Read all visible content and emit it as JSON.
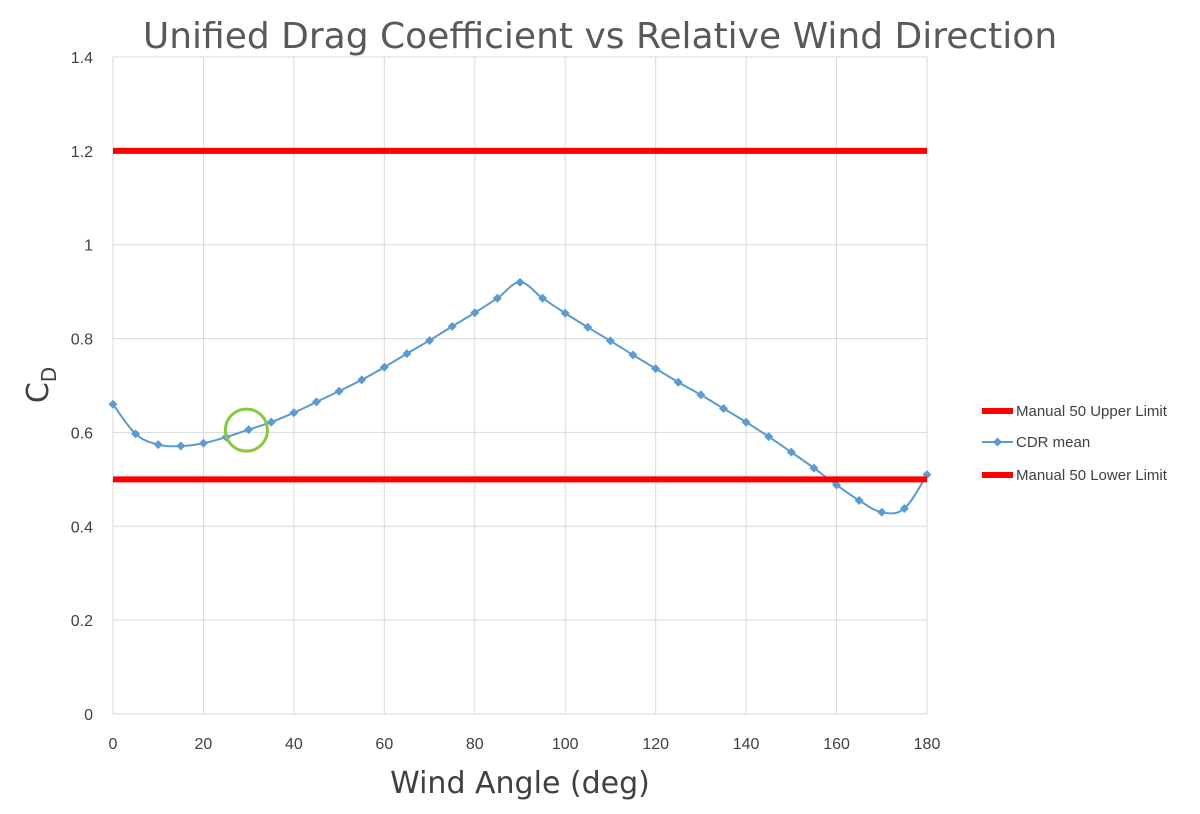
{
  "chart_data": {
    "type": "line",
    "title": "Unified Drag Coefficient vs Relative Wind Direction",
    "xlabel": "Wind Angle (deg)",
    "ylabel_main": "C",
    "ylabel_sub": "D",
    "xlim": [
      0,
      180
    ],
    "ylim": [
      0,
      1.4
    ],
    "x_ticks": [
      0,
      20,
      40,
      60,
      80,
      100,
      120,
      140,
      160,
      180
    ],
    "x_tick_labels": [
      "0",
      "20",
      "40",
      "60",
      "80",
      "100",
      "120",
      "140",
      "160",
      "180"
    ],
    "y_ticks": [
      0,
      0.2,
      0.4,
      0.6,
      0.8,
      1.0,
      1.2,
      1.4
    ],
    "y_tick_labels": [
      "0",
      "0.2",
      "0.4",
      "0.6",
      "0.8",
      "1",
      "1.2",
      "1.4"
    ],
    "grid": true,
    "legend_position": "right",
    "series": [
      {
        "name": "Manual 50 Upper Limit",
        "color": "#ff0000",
        "x": [
          0,
          180
        ],
        "y": [
          1.2,
          1.2
        ]
      },
      {
        "name": "CDR mean",
        "color": "#5b9bd5",
        "marker": "diamond",
        "x": [
          0,
          5,
          10,
          15,
          20,
          25,
          30,
          35,
          40,
          45,
          50,
          55,
          60,
          65,
          70,
          75,
          80,
          85,
          90,
          95,
          100,
          105,
          110,
          115,
          120,
          125,
          130,
          135,
          140,
          145,
          150,
          155,
          160,
          165,
          170,
          175,
          180
        ],
        "y": [
          0.66,
          0.597,
          0.574,
          0.571,
          0.577,
          0.59,
          0.606,
          0.622,
          0.642,
          0.665,
          0.688,
          0.712,
          0.739,
          0.768,
          0.796,
          0.826,
          0.855,
          0.886,
          0.92,
          0.886,
          0.854,
          0.824,
          0.795,
          0.765,
          0.736,
          0.707,
          0.68,
          0.651,
          0.622,
          0.591,
          0.558,
          0.524,
          0.488,
          0.455,
          0.43,
          0.438,
          0.51
        ]
      },
      {
        "name": "Manual 50 Lower Limit",
        "color": "#ff0000",
        "x": [
          0,
          180
        ],
        "y": [
          0.5,
          0.5
        ]
      }
    ],
    "annotations": [
      {
        "type": "circle",
        "x": 29.5,
        "y": 0.605,
        "color": "#8dc63f"
      }
    ]
  }
}
